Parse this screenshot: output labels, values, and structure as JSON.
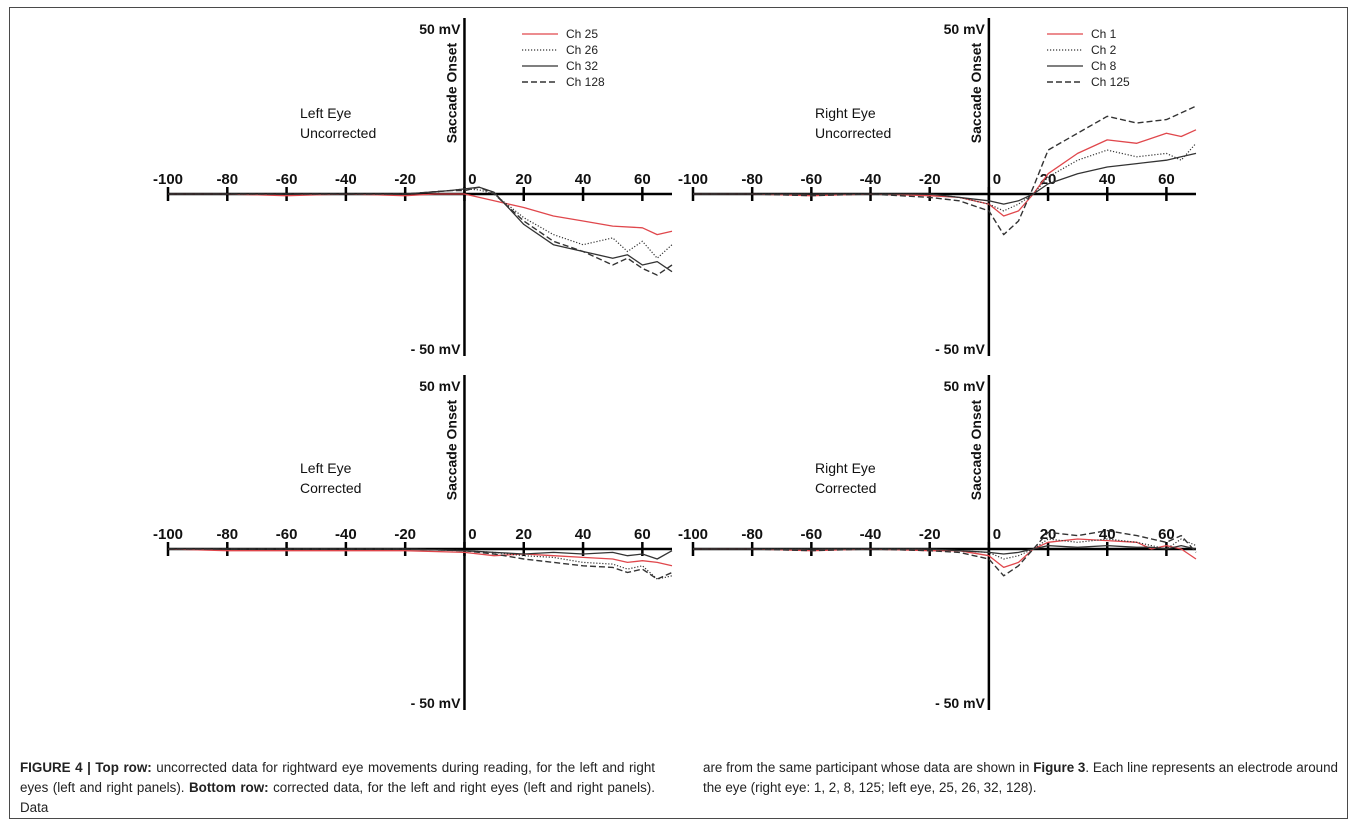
{
  "caption": {
    "col1": [
      {
        "t": "FIGURE 4 | Top row:",
        "b": true
      },
      {
        "t": " uncorrected data for rightward eye movements during reading, for the left and right eyes (left and right panels). ",
        "b": false
      },
      {
        "t": "Bottom row:",
        "b": true
      },
      {
        "t": " corrected data, for the left and right eyes (left and right panels). Data",
        "b": false
      }
    ],
    "col2": [
      {
        "t": "are from the same participant whose data are shown in ",
        "b": false
      },
      {
        "t": "Figure 3",
        "b": true
      },
      {
        "t": ". Each line represents an electrode around the eye (right eye: 1, 2, 8, 125; left eye, 25, 26, 32, 128).",
        "b": false
      }
    ]
  },
  "colors": {
    "red": "#e0474c",
    "dark": "#333333",
    "axis": "#000000"
  },
  "chart_data": [
    {
      "type": "line",
      "title": "Left Eye Uncorrected",
      "title_lines": [
        "Left Eye",
        "Uncorrected"
      ],
      "vertical_label": "Saccade Onset",
      "y_top_label": "50 mV",
      "y_bottom_label": "- 50 mV",
      "xlim": [
        -100,
        70
      ],
      "ylim": [
        -50,
        50
      ],
      "x_ticks": [
        -100,
        -80,
        -60,
        -40,
        -20,
        0,
        20,
        40,
        60
      ],
      "legend": [
        "Ch 25",
        "Ch 26",
        "Ch 32",
        "Ch 128"
      ],
      "series": [
        {
          "name": "Ch 25",
          "style": "red",
          "x": [
            -100,
            -80,
            -60,
            -40,
            -20,
            -10,
            0,
            5,
            10,
            20,
            30,
            40,
            50,
            60,
            65,
            70
          ],
          "y": [
            0,
            0,
            -0.5,
            0,
            -0.5,
            0,
            0,
            -1,
            -2,
            -4,
            -6.5,
            -8,
            -9.5,
            -10,
            -12,
            -11
          ]
        },
        {
          "name": "Ch 26",
          "style": "dotted",
          "x": [
            -100,
            -80,
            -60,
            -40,
            -20,
            -5,
            0,
            5,
            10,
            20,
            30,
            40,
            50,
            55,
            60,
            65,
            70
          ],
          "y": [
            0,
            0,
            0,
            0,
            0,
            1,
            1.5,
            1.2,
            0,
            -7,
            -12,
            -15,
            -13,
            -17,
            -14,
            -19,
            -15
          ]
        },
        {
          "name": "Ch 32",
          "style": "solid",
          "x": [
            -100,
            -80,
            -60,
            -40,
            -20,
            -5,
            0,
            5,
            10,
            20,
            30,
            40,
            50,
            55,
            60,
            65,
            70
          ],
          "y": [
            0,
            0,
            0,
            0,
            0,
            1,
            1.5,
            2,
            0.5,
            -9,
            -15,
            -17,
            -19,
            -18,
            -21,
            -20,
            -23
          ]
        },
        {
          "name": "Ch 128",
          "style": "dashed",
          "x": [
            -100,
            -80,
            -60,
            -40,
            -20,
            -5,
            0,
            5,
            10,
            20,
            30,
            40,
            50,
            55,
            60,
            65,
            70
          ],
          "y": [
            0,
            0,
            0,
            0,
            0,
            1,
            1,
            2,
            0,
            -8,
            -14,
            -17,
            -21,
            -19,
            -22,
            -24,
            -21
          ]
        }
      ]
    },
    {
      "type": "line",
      "title": "Right Eye Uncorrected",
      "title_lines": [
        "Right Eye",
        "Uncorrected"
      ],
      "vertical_label": "Saccade Onset",
      "y_top_label": "50 mV",
      "y_bottom_label": "- 50 mV",
      "xlim": [
        -100,
        70
      ],
      "ylim": [
        -50,
        50
      ],
      "x_ticks": [
        -100,
        -80,
        -60,
        -40,
        -20,
        0,
        20,
        40,
        60
      ],
      "legend": [
        "Ch 1",
        "Ch 2",
        "Ch 8",
        "Ch 125"
      ],
      "series": [
        {
          "name": "Ch 1",
          "style": "red",
          "x": [
            -100,
            -80,
            -60,
            -40,
            -20,
            -10,
            0,
            5,
            10,
            15,
            20,
            30,
            40,
            50,
            60,
            65,
            70
          ],
          "y": [
            0,
            0,
            -0.5,
            0,
            -0.5,
            -1,
            -3,
            -6.5,
            -5,
            0,
            6,
            12,
            16,
            15,
            18,
            17,
            19
          ]
        },
        {
          "name": "Ch 2",
          "style": "dotted",
          "x": [
            -100,
            -80,
            -60,
            -40,
            -20,
            -10,
            0,
            5,
            10,
            15,
            20,
            30,
            40,
            50,
            60,
            65,
            70
          ],
          "y": [
            0,
            0,
            0,
            0,
            0,
            -1,
            -3,
            -5,
            -3,
            0,
            5,
            10,
            13,
            11,
            12,
            10,
            15
          ]
        },
        {
          "name": "Ch 8",
          "style": "solid",
          "x": [
            -100,
            -80,
            -60,
            -40,
            -20,
            -10,
            0,
            5,
            10,
            15,
            20,
            30,
            40,
            50,
            60,
            65,
            70
          ],
          "y": [
            0,
            0,
            0,
            0,
            0,
            -1,
            -2,
            -3,
            -2,
            0,
            3,
            6,
            8,
            9,
            10,
            11,
            12
          ]
        },
        {
          "name": "Ch 125",
          "style": "dashed",
          "x": [
            -100,
            -80,
            -60,
            -40,
            -20,
            -10,
            0,
            5,
            10,
            15,
            20,
            30,
            40,
            50,
            60,
            65,
            70
          ],
          "y": [
            0,
            0,
            -0.5,
            0,
            -1,
            -2,
            -5,
            -12,
            -8,
            2,
            13,
            18,
            23,
            21,
            22,
            24,
            26
          ]
        }
      ]
    },
    {
      "type": "line",
      "title": "Left Eye Corrected",
      "title_lines": [
        "Left Eye",
        "Corrected"
      ],
      "vertical_label": "Saccade Onset",
      "y_top_label": "50 mV",
      "y_bottom_label": "- 50 mV",
      "xlim": [
        -100,
        70
      ],
      "ylim": [
        -50,
        50
      ],
      "x_ticks": [
        -100,
        -80,
        -60,
        -40,
        -20,
        0,
        20,
        40,
        60
      ],
      "legend": [],
      "series": [
        {
          "name": "Ch 25",
          "style": "red",
          "x": [
            -100,
            -80,
            -60,
            -40,
            -20,
            0,
            10,
            20,
            30,
            40,
            50,
            55,
            60,
            65,
            70
          ],
          "y": [
            0,
            -0.5,
            -0.5,
            -0.5,
            -0.5,
            -1,
            -2,
            -1.5,
            -2,
            -2.5,
            -3,
            -4,
            -3.5,
            -4,
            -5
          ]
        },
        {
          "name": "Ch 26",
          "style": "dotted",
          "x": [
            -100,
            -80,
            -60,
            -40,
            -20,
            0,
            10,
            20,
            30,
            40,
            50,
            55,
            60,
            65,
            70
          ],
          "y": [
            0,
            0,
            0,
            0,
            0,
            -0.5,
            -1,
            -2,
            -2.5,
            -4,
            -4.5,
            -6,
            -5,
            -9,
            -8
          ]
        },
        {
          "name": "Ch 32",
          "style": "solid",
          "x": [
            -100,
            -80,
            -60,
            -40,
            -20,
            0,
            10,
            20,
            30,
            40,
            50,
            55,
            60,
            65,
            70
          ],
          "y": [
            0,
            0,
            0,
            0,
            0,
            -0.5,
            -1,
            -1.5,
            -1,
            -1.5,
            -1,
            -2,
            -1.5,
            -3,
            -0.5
          ]
        },
        {
          "name": "Ch 128",
          "style": "dashed",
          "x": [
            -100,
            -80,
            -60,
            -40,
            -20,
            0,
            10,
            20,
            30,
            40,
            50,
            55,
            60,
            65,
            70
          ],
          "y": [
            0,
            0,
            0,
            0,
            0,
            -0.5,
            -1.5,
            -3,
            -4,
            -5,
            -5.5,
            -7,
            -6,
            -9,
            -7
          ]
        }
      ]
    },
    {
      "type": "line",
      "title": "Right Eye Corrected",
      "title_lines": [
        "Right Eye",
        "Corrected"
      ],
      "vertical_label": "Saccade Onset",
      "y_top_label": "50 mV",
      "y_bottom_label": "- 50 mV",
      "xlim": [
        -100,
        70
      ],
      "ylim": [
        -50,
        50
      ],
      "x_ticks": [
        -100,
        -80,
        -60,
        -40,
        -20,
        0,
        20,
        40,
        60
      ],
      "legend": [],
      "series": [
        {
          "name": "Ch 1",
          "style": "red",
          "x": [
            -100,
            -80,
            -60,
            -40,
            -20,
            -10,
            0,
            5,
            10,
            15,
            20,
            30,
            40,
            50,
            55,
            60,
            65,
            70
          ],
          "y": [
            0,
            0,
            -0.5,
            0,
            -0.5,
            -0.5,
            -2,
            -5.5,
            -4,
            0,
            2,
            3,
            2.5,
            2,
            0,
            1,
            0,
            -3
          ]
        },
        {
          "name": "Ch 2",
          "style": "dotted",
          "x": [
            -100,
            -80,
            -60,
            -40,
            -20,
            -10,
            0,
            5,
            10,
            15,
            20,
            30,
            40,
            50,
            55,
            60,
            65,
            70
          ],
          "y": [
            0,
            0,
            0,
            0,
            0,
            -0.5,
            -1,
            -3,
            -2,
            0,
            3,
            2,
            3,
            2,
            1,
            0,
            3,
            1
          ]
        },
        {
          "name": "Ch 8",
          "style": "solid",
          "x": [
            -100,
            -80,
            -60,
            -40,
            -20,
            -10,
            0,
            5,
            10,
            15,
            20,
            30,
            40,
            50,
            55,
            60,
            65,
            70
          ],
          "y": [
            0,
            0,
            0,
            0,
            0,
            -0.5,
            -1,
            -1.5,
            -1,
            0,
            1,
            0.5,
            1,
            0.5,
            0.5,
            0,
            1,
            0
          ]
        },
        {
          "name": "Ch 125",
          "style": "dashed",
          "x": [
            -100,
            -80,
            -60,
            -40,
            -20,
            -10,
            0,
            5,
            10,
            15,
            20,
            30,
            40,
            50,
            55,
            60,
            65,
            70
          ],
          "y": [
            0,
            0,
            -0.5,
            0,
            -0.5,
            -1,
            -3,
            -8,
            -5,
            0,
            5,
            4,
            5.5,
            4,
            3,
            2,
            4,
            -1
          ]
        }
      ]
    }
  ]
}
